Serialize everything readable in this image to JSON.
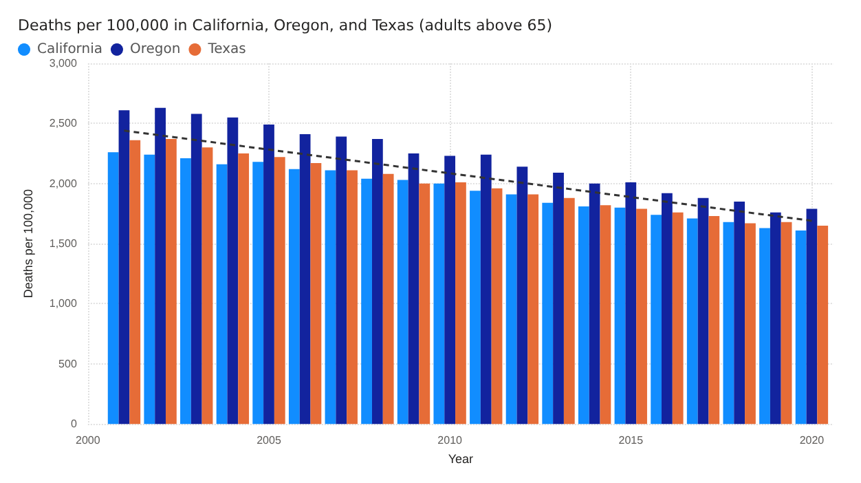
{
  "chart_data": {
    "type": "bar",
    "title": "Deaths per 100,000 in California, Oregon, and Texas (adults above 65)",
    "xlabel": "Year",
    "ylabel": "Deaths per 100,000",
    "x": [
      2001,
      2002,
      2003,
      2004,
      2005,
      2006,
      2007,
      2008,
      2009,
      2010,
      2011,
      2012,
      2013,
      2014,
      2015,
      2016,
      2017,
      2018,
      2019,
      2020
    ],
    "series": [
      {
        "name": "California",
        "color": "#118dff",
        "values": [
          2260,
          2240,
          2210,
          2160,
          2180,
          2120,
          2110,
          2040,
          2030,
          2000,
          1940,
          1910,
          1840,
          1810,
          1800,
          1740,
          1710,
          1680,
          1630,
          1610
        ]
      },
      {
        "name": "Oregon",
        "color": "#12239e",
        "values": [
          2610,
          2630,
          2580,
          2550,
          2490,
          2410,
          2390,
          2370,
          2250,
          2230,
          2240,
          2140,
          2090,
          2000,
          2010,
          1920,
          1880,
          1850,
          1760,
          1790
        ]
      },
      {
        "name": "Texas",
        "color": "#e66c37",
        "values": [
          2360,
          2370,
          2300,
          2250,
          2220,
          2170,
          2110,
          2080,
          2000,
          2010,
          1960,
          1910,
          1880,
          1820,
          1790,
          1760,
          1730,
          1670,
          1680,
          1650
        ]
      },
      {
        "type": "line",
        "color": "#333333",
        "line_style": "dashed",
        "marker": "none",
        "x": [
          2001,
          2020
        ],
        "values": [
          2440,
          1690
        ]
      }
    ],
    "xlim": [
      2000,
      2020.6
    ],
    "xticks": [
      2000,
      2005,
      2010,
      2015,
      2020
    ],
    "ylim": [
      0,
      3000
    ],
    "yticks": [
      0,
      {
        "value": 500,
        "label": "500"
      },
      {
        "value": 1000,
        "label": "1,000"
      },
      {
        "value": 1500,
        "label": "1,500"
      },
      {
        "value": 2000,
        "label": "2,000"
      },
      {
        "value": 2500,
        "label": "2,500"
      },
      {
        "value": 3000,
        "label": "3,000"
      }
    ],
    "grid": true,
    "legend": "top left"
  }
}
